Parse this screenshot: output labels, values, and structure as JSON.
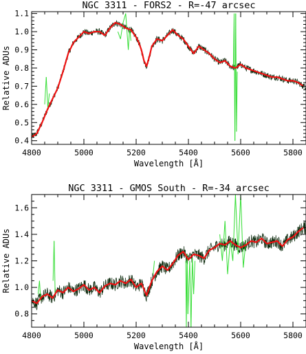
{
  "chart_data": [
    {
      "type": "line",
      "title": "NGC 3311 - FORS2 - R=-47 arcsec",
      "xlabel": "Wavelength [Å]",
      "ylabel": "Relative ADUs",
      "xlim": [
        4800,
        5850
      ],
      "ylim": [
        0.38,
        1.11
      ],
      "xticks": [
        4800,
        5000,
        5200,
        5400,
        5600,
        5800
      ],
      "yticks": [
        0.4,
        0.5,
        0.6,
        0.7,
        0.8,
        0.9,
        1.0,
        1.1
      ],
      "grid": false,
      "colors": {
        "observed": "#0f2d10",
        "masked": "#33dd33",
        "model": "#ee1111"
      },
      "series": [
        {
          "role": "model",
          "x": [
            4800,
            4820,
            4840,
            4860,
            4880,
            4900,
            4920,
            4940,
            4960,
            4980,
            5000,
            5020,
            5040,
            5060,
            5080,
            5100,
            5120,
            5140,
            5160,
            5180,
            5200,
            5210,
            5220,
            5230,
            5240,
            5250,
            5260,
            5280,
            5300,
            5320,
            5340,
            5360,
            5380,
            5400,
            5420,
            5440,
            5460,
            5480,
            5500,
            5520,
            5540,
            5560,
            5580,
            5600,
            5620,
            5640,
            5660,
            5680,
            5700,
            5720,
            5740,
            5760,
            5780,
            5800,
            5820,
            5840
          ],
          "y": [
            0.42,
            0.44,
            0.5,
            0.57,
            0.63,
            0.69,
            0.78,
            0.88,
            0.94,
            0.97,
            1.0,
            0.99,
            1.0,
            1.0,
            0.98,
            1.02,
            1.05,
            1.04,
            1.02,
            1.01,
            0.97,
            0.94,
            0.9,
            0.84,
            0.81,
            0.86,
            0.92,
            0.96,
            0.95,
            0.98,
            1.01,
            0.98,
            0.96,
            0.92,
            0.88,
            0.92,
            0.9,
            0.88,
            0.85,
            0.83,
            0.84,
            0.81,
            0.8,
            0.82,
            0.8,
            0.79,
            0.78,
            0.77,
            0.76,
            0.75,
            0.75,
            0.74,
            0.73,
            0.73,
            0.72,
            0.7
          ]
        },
        {
          "role": "masked",
          "x": [
            4850,
            4856,
            4862,
            4868,
            5130,
            5140,
            5150,
            5160,
            5170,
            5175,
            5180,
            5572,
            5575,
            5578,
            5581,
            5584,
            5587
          ],
          "y": [
            0.6,
            0.75,
            0.58,
            0.66,
            1.0,
            0.96,
            1.05,
            1.1,
            0.9,
            1.02,
            0.95,
            0.8,
            1.1,
            0.4,
            1.1,
            0.45,
            0.78
          ]
        }
      ]
    },
    {
      "type": "line",
      "title": "NGC 3311 - GMOS South - R=-34 arcsec",
      "xlabel": "Wavelength [Å]",
      "ylabel": "Relative ADUs",
      "xlim": [
        4800,
        5850
      ],
      "ylim": [
        0.7,
        1.7
      ],
      "xticks": [
        4800,
        5000,
        5200,
        5400,
        5600,
        5800
      ],
      "yticks": [
        0.8,
        1.0,
        1.2,
        1.4,
        1.6
      ],
      "grid": false,
      "colors": {
        "observed": "#0f2d10",
        "masked": "#33dd33",
        "model": "#ee1111"
      },
      "series": [
        {
          "role": "model",
          "x": [
            4800,
            4820,
            4840,
            4860,
            4880,
            4900,
            4920,
            4940,
            4960,
            4980,
            5000,
            5020,
            5040,
            5060,
            5080,
            5100,
            5120,
            5140,
            5160,
            5180,
            5200,
            5220,
            5240,
            5260,
            5280,
            5300,
            5320,
            5340,
            5360,
            5380,
            5400,
            5420,
            5440,
            5460,
            5480,
            5500,
            5520,
            5540,
            5560,
            5580,
            5600,
            5620,
            5640,
            5660,
            5680,
            5700,
            5720,
            5740,
            5760,
            5780,
            5800,
            5820,
            5840
          ],
          "y": [
            0.9,
            0.88,
            0.93,
            0.95,
            0.92,
            0.98,
            0.96,
            1.0,
            0.97,
            0.99,
            1.02,
            0.98,
            1.0,
            0.96,
            1.01,
            1.03,
            1.02,
            1.05,
            1.03,
            1.06,
            1.0,
            1.03,
            0.94,
            1.05,
            1.12,
            1.16,
            1.13,
            1.18,
            1.24,
            1.27,
            1.21,
            1.25,
            1.24,
            1.22,
            1.28,
            1.3,
            1.33,
            1.32,
            1.35,
            1.32,
            1.3,
            1.32,
            1.35,
            1.34,
            1.37,
            1.33,
            1.34,
            1.35,
            1.31,
            1.36,
            1.38,
            1.42,
            1.45
          ]
        },
        {
          "role": "masked",
          "x": [
            4825,
            4830,
            4835,
            4882,
            4886,
            4890,
            5265,
            5270,
            5390,
            5392,
            5395,
            5398,
            5405,
            5410,
            5415,
            5420,
            5425,
            5520,
            5530,
            5540,
            5550,
            5560,
            5570,
            5580,
            5590,
            5600,
            5610,
            5620
          ],
          "y": [
            0.95,
            1.05,
            0.9,
            1.05,
            1.35,
            0.95,
            1.1,
            1.2,
            1.2,
            0.7,
            1.25,
            0.8,
            1.2,
            0.7,
            1.22,
            0.95,
            1.2,
            1.4,
            1.2,
            1.5,
            1.1,
            1.35,
            1.2,
            1.7,
            1.25,
            1.7,
            1.15,
            1.35
          ]
        }
      ]
    }
  ]
}
